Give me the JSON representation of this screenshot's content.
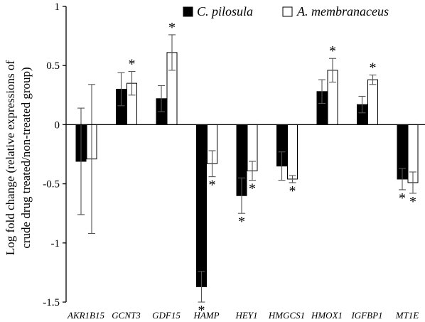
{
  "chart_data": {
    "type": "bar",
    "title": "",
    "ylabel_line1": "Log fold change (relative expressions of",
    "ylabel_line2": "crude drug treated/non-treated group)",
    "xlabel": "",
    "ylim": [
      -1.5,
      1
    ],
    "yticks": [
      -1.5,
      -1,
      -0.5,
      0,
      0.5,
      1
    ],
    "ytick_labels": [
      "-1.5",
      "-1",
      "-0.5",
      "0",
      "0.5",
      "1"
    ],
    "categories": [
      "AKR1B15",
      "GCNT3",
      "GDF15",
      "HAMP",
      "HEY1",
      "HMGCS1",
      "HMOX1",
      "IGFBP1",
      "MT1E"
    ],
    "series": [
      {
        "name": "C. pilosula",
        "fill": "#000000",
        "values": [
          -0.31,
          0.3,
          0.22,
          -1.37,
          -0.6,
          -0.35,
          0.28,
          0.17,
          -0.46
        ],
        "errors": [
          0.45,
          0.14,
          0.11,
          0.13,
          0.15,
          0.12,
          0.1,
          0.07,
          0.09
        ],
        "significant": [
          false,
          false,
          false,
          true,
          true,
          false,
          false,
          false,
          true
        ]
      },
      {
        "name": "A. membranaceus",
        "fill": "#ffffff",
        "values": [
          -0.29,
          0.35,
          0.61,
          -0.33,
          -0.39,
          -0.46,
          0.46,
          0.38,
          -0.49
        ],
        "errors": [
          0.63,
          0.1,
          0.15,
          0.11,
          0.08,
          0.03,
          0.1,
          0.04,
          0.09
        ],
        "significant": [
          false,
          true,
          true,
          true,
          true,
          true,
          true,
          true,
          true
        ]
      }
    ],
    "significance_marker": "*",
    "legend_position": "top-right",
    "grid": false
  }
}
